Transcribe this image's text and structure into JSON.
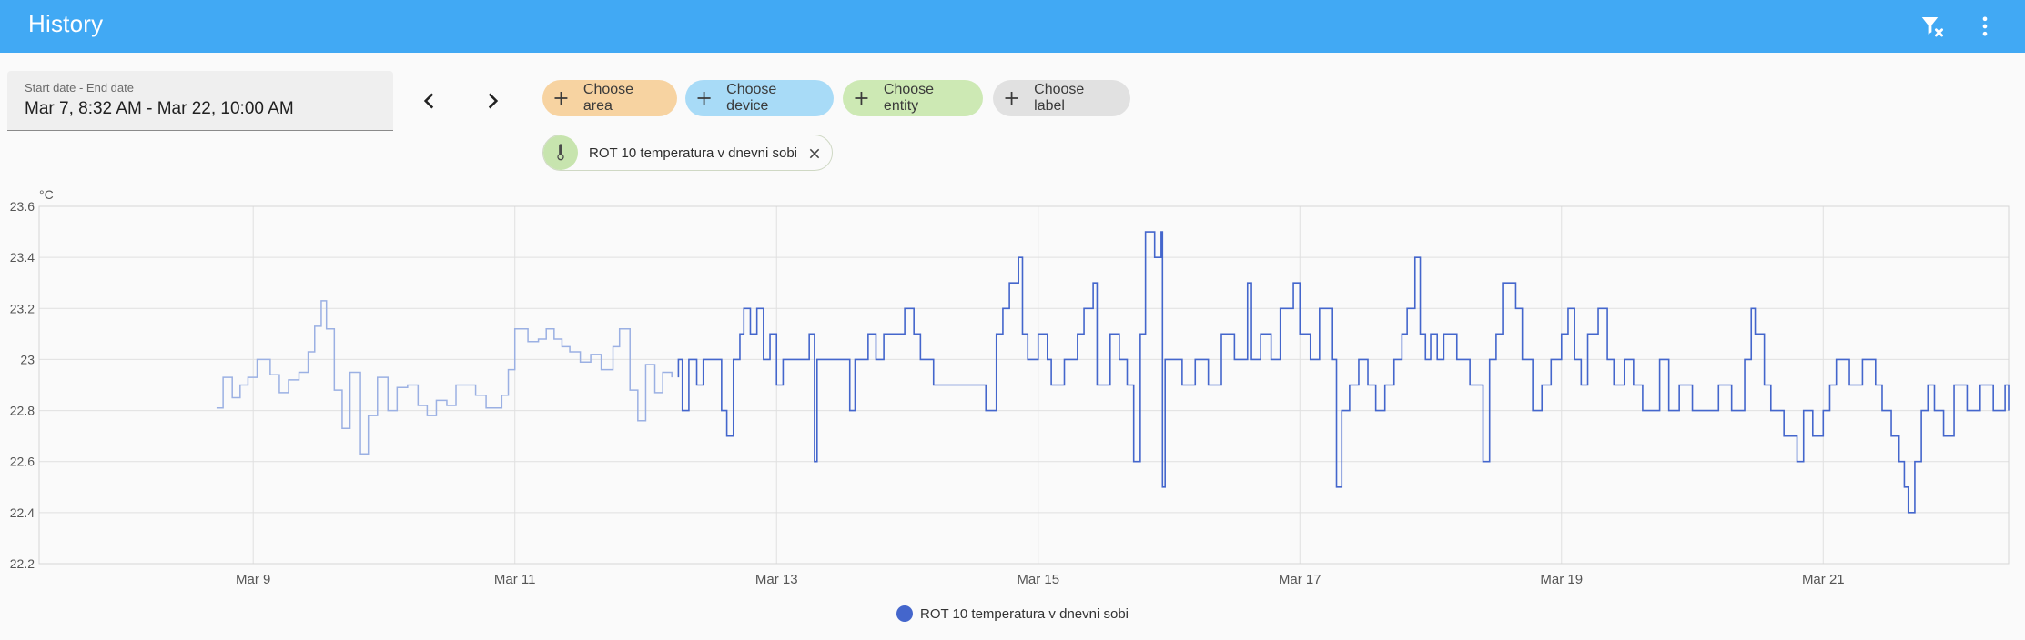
{
  "app": {
    "title": "History"
  },
  "toolbar": {
    "clear_filter_icon": "filter-remove-icon",
    "menu_icon": "dots-vertical-icon"
  },
  "date_range": {
    "label": "Start date - End date",
    "value": "Mar 7, 8:32 AM - Mar 22, 10:00 AM"
  },
  "navigation": {
    "previous_icon": "chevron-left-icon",
    "next_icon": "chevron-right-icon"
  },
  "target_pickers": [
    {
      "label": "Choose area",
      "color": "#f7d3a1"
    },
    {
      "label": "Choose device",
      "color": "#a8dbf7"
    },
    {
      "label": "Choose entity",
      "color": "#cde9b4"
    },
    {
      "label": "Choose label",
      "color": "#e1e1e1"
    }
  ],
  "selected_entities": [
    {
      "label": "ROT 10 temperatura v dnevni sobi",
      "icon": "thermometer-icon"
    }
  ],
  "colors": {
    "accent": "#41a9f4",
    "series": "#4466cc",
    "series_faded": "#9bb0e3",
    "grid": "#e0e0e0"
  },
  "chart_data": {
    "type": "line",
    "step": true,
    "unit": "°C",
    "y_ticks": [
      "23.6",
      "23.4",
      "23.2",
      "23",
      "22.8",
      "22.6",
      "22.4",
      "22.2"
    ],
    "ylim": [
      22.2,
      23.6
    ],
    "x_ticks": [
      {
        "label": "Mar 9",
        "day": 9
      },
      {
        "label": "Mar 11",
        "day": 11
      },
      {
        "label": "Mar 13",
        "day": 13
      },
      {
        "label": "Mar 15",
        "day": 15
      },
      {
        "label": "Mar 17",
        "day": 17
      },
      {
        "label": "Mar 19",
        "day": 19
      },
      {
        "label": "Mar 21",
        "day": 21
      }
    ],
    "xlim": [
      7.364,
      22.417
    ],
    "grid": true,
    "legend_position": "bottom-center",
    "series": [
      {
        "name": "ROT 10 temperatura v dnevni sobi",
        "faded_until_day": 12.2,
        "points": [
          [
            8.72,
            22.81
          ],
          [
            8.77,
            22.93
          ],
          [
            8.84,
            22.85
          ],
          [
            8.9,
            22.9
          ],
          [
            8.96,
            22.93
          ],
          [
            9.03,
            23.0
          ],
          [
            9.13,
            22.94
          ],
          [
            9.2,
            22.87
          ],
          [
            9.27,
            22.92
          ],
          [
            9.35,
            22.95
          ],
          [
            9.42,
            23.03
          ],
          [
            9.47,
            23.13
          ],
          [
            9.52,
            23.23
          ],
          [
            9.56,
            23.12
          ],
          [
            9.62,
            22.88
          ],
          [
            9.68,
            22.73
          ],
          [
            9.74,
            22.95
          ],
          [
            9.82,
            22.63
          ],
          [
            9.88,
            22.78
          ],
          [
            9.95,
            22.93
          ],
          [
            10.03,
            22.8
          ],
          [
            10.1,
            22.89
          ],
          [
            10.18,
            22.9
          ],
          [
            10.26,
            22.82
          ],
          [
            10.33,
            22.78
          ],
          [
            10.4,
            22.84
          ],
          [
            10.48,
            22.82
          ],
          [
            10.55,
            22.9
          ],
          [
            10.7,
            22.86
          ],
          [
            10.78,
            22.81
          ],
          [
            10.9,
            22.86
          ],
          [
            10.95,
            22.96
          ],
          [
            11.0,
            23.12
          ],
          [
            11.1,
            23.07
          ],
          [
            11.18,
            23.08
          ],
          [
            11.24,
            23.12
          ],
          [
            11.3,
            23.08
          ],
          [
            11.36,
            23.05
          ],
          [
            11.42,
            23.03
          ],
          [
            11.5,
            22.99
          ],
          [
            11.58,
            23.02
          ],
          [
            11.66,
            22.96
          ],
          [
            11.75,
            23.05
          ],
          [
            11.8,
            23.12
          ],
          [
            11.88,
            22.88
          ],
          [
            11.94,
            22.76
          ],
          [
            12.0,
            22.98
          ],
          [
            12.07,
            22.87
          ],
          [
            12.13,
            22.95
          ],
          [
            12.2,
            22.93
          ],
          [
            12.25,
            23.0
          ],
          [
            12.28,
            22.8
          ],
          [
            12.33,
            23.0
          ],
          [
            12.39,
            22.9
          ],
          [
            12.44,
            23.0
          ],
          [
            12.58,
            22.8
          ],
          [
            12.62,
            22.7
          ],
          [
            12.67,
            23.0
          ],
          [
            12.72,
            23.1
          ],
          [
            12.75,
            23.2
          ],
          [
            12.8,
            23.1
          ],
          [
            12.85,
            23.2
          ],
          [
            12.9,
            23.0
          ],
          [
            12.95,
            23.1
          ],
          [
            13.0,
            22.9
          ],
          [
            13.05,
            23.0
          ],
          [
            13.25,
            23.1
          ],
          [
            13.29,
            23.0
          ],
          [
            13.29,
            22.6
          ],
          [
            13.31,
            23.0
          ],
          [
            13.56,
            22.8
          ],
          [
            13.6,
            23.0
          ],
          [
            13.7,
            23.1
          ],
          [
            13.76,
            23.0
          ],
          [
            13.82,
            23.1
          ],
          [
            13.98,
            23.2
          ],
          [
            14.05,
            23.1
          ],
          [
            14.1,
            23.0
          ],
          [
            14.2,
            22.9
          ],
          [
            14.6,
            22.8
          ],
          [
            14.68,
            23.1
          ],
          [
            14.73,
            23.2
          ],
          [
            14.78,
            23.3
          ],
          [
            14.85,
            23.4
          ],
          [
            14.88,
            23.1
          ],
          [
            14.92,
            23.0
          ],
          [
            15.0,
            23.1
          ],
          [
            15.07,
            23.0
          ],
          [
            15.1,
            22.9
          ],
          [
            15.2,
            23.0
          ],
          [
            15.3,
            23.1
          ],
          [
            15.35,
            23.2
          ],
          [
            15.42,
            23.3
          ],
          [
            15.45,
            22.9
          ],
          [
            15.55,
            23.1
          ],
          [
            15.62,
            23.0
          ],
          [
            15.68,
            22.9
          ],
          [
            15.73,
            22.6
          ],
          [
            15.78,
            23.1
          ],
          [
            15.82,
            23.5
          ],
          [
            15.89,
            23.4
          ],
          [
            15.94,
            23.5
          ],
          [
            15.95,
            22.5
          ],
          [
            15.97,
            23.0
          ],
          [
            16.1,
            22.9
          ],
          [
            16.2,
            23.0
          ],
          [
            16.3,
            22.9
          ],
          [
            16.4,
            23.1
          ],
          [
            16.5,
            23.0
          ],
          [
            16.6,
            23.3
          ],
          [
            16.63,
            23.0
          ],
          [
            16.7,
            23.1
          ],
          [
            16.78,
            23.0
          ],
          [
            16.85,
            23.2
          ],
          [
            16.95,
            23.3
          ],
          [
            17.0,
            23.1
          ],
          [
            17.08,
            23.0
          ],
          [
            17.15,
            23.2
          ],
          [
            17.25,
            23.0
          ],
          [
            17.28,
            22.5
          ],
          [
            17.32,
            22.8
          ],
          [
            17.38,
            22.9
          ],
          [
            17.45,
            23.0
          ],
          [
            17.52,
            22.9
          ],
          [
            17.58,
            22.8
          ],
          [
            17.65,
            22.9
          ],
          [
            17.72,
            23.0
          ],
          [
            17.78,
            23.1
          ],
          [
            17.82,
            23.2
          ],
          [
            17.88,
            23.4
          ],
          [
            17.92,
            23.1
          ],
          [
            17.96,
            23.0
          ],
          [
            18.0,
            23.1
          ],
          [
            18.05,
            23.0
          ],
          [
            18.1,
            23.1
          ],
          [
            18.2,
            23.0
          ],
          [
            18.3,
            22.9
          ],
          [
            18.4,
            22.6
          ],
          [
            18.45,
            23.0
          ],
          [
            18.5,
            23.1
          ],
          [
            18.55,
            23.3
          ],
          [
            18.65,
            23.2
          ],
          [
            18.7,
            23.0
          ],
          [
            18.78,
            22.8
          ],
          [
            18.85,
            22.9
          ],
          [
            18.92,
            23.0
          ],
          [
            19.0,
            23.1
          ],
          [
            19.05,
            23.2
          ],
          [
            19.1,
            23.0
          ],
          [
            19.15,
            22.9
          ],
          [
            19.2,
            23.1
          ],
          [
            19.28,
            23.2
          ],
          [
            19.35,
            23.0
          ],
          [
            19.4,
            22.9
          ],
          [
            19.48,
            23.0
          ],
          [
            19.55,
            22.9
          ],
          [
            19.62,
            22.8
          ],
          [
            19.75,
            23.0
          ],
          [
            19.82,
            22.8
          ],
          [
            19.9,
            22.9
          ],
          [
            20.0,
            22.8
          ],
          [
            20.2,
            22.9
          ],
          [
            20.3,
            22.8
          ],
          [
            20.4,
            23.0
          ],
          [
            20.45,
            23.2
          ],
          [
            20.48,
            23.1
          ],
          [
            20.55,
            22.9
          ],
          [
            20.6,
            22.8
          ],
          [
            20.7,
            22.7
          ],
          [
            20.8,
            22.6
          ],
          [
            20.85,
            22.8
          ],
          [
            20.92,
            22.7
          ],
          [
            21.0,
            22.8
          ],
          [
            21.05,
            22.9
          ],
          [
            21.1,
            23.0
          ],
          [
            21.2,
            22.9
          ],
          [
            21.3,
            23.0
          ],
          [
            21.4,
            22.9
          ],
          [
            21.45,
            22.8
          ],
          [
            21.52,
            22.7
          ],
          [
            21.58,
            22.6
          ],
          [
            21.62,
            22.5
          ],
          [
            21.65,
            22.4
          ],
          [
            21.7,
            22.6
          ],
          [
            21.75,
            22.8
          ],
          [
            21.8,
            22.9
          ],
          [
            21.85,
            22.8
          ],
          [
            21.92,
            22.7
          ],
          [
            22.0,
            22.9
          ],
          [
            22.1,
            22.8
          ],
          [
            22.2,
            22.9
          ],
          [
            22.3,
            22.8
          ],
          [
            22.39,
            22.9
          ],
          [
            22.417,
            22.8
          ]
        ]
      }
    ]
  }
}
